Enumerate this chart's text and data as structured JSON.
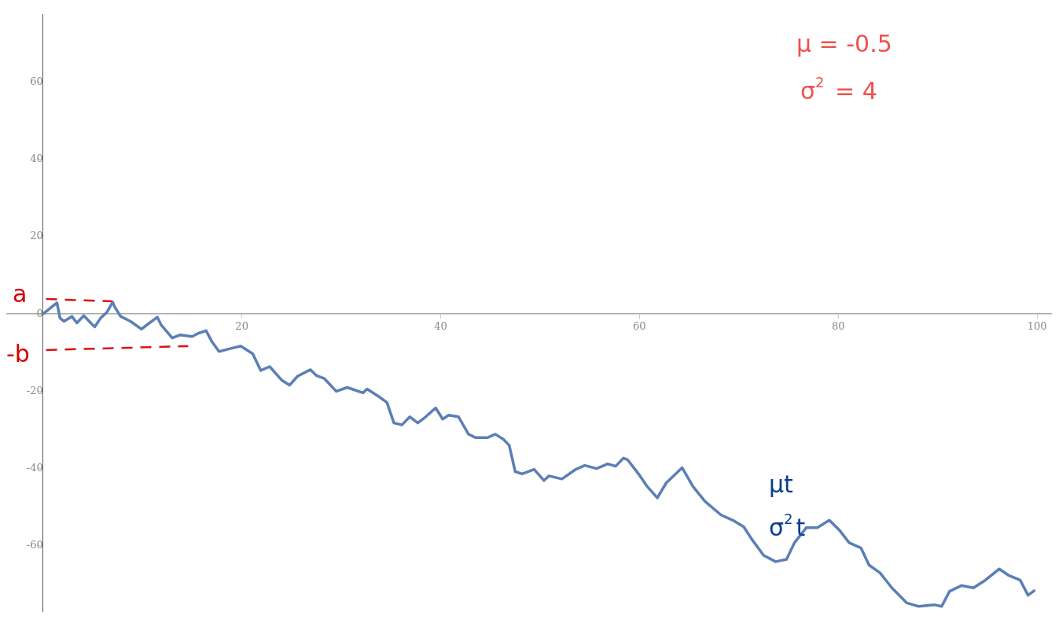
{
  "chart_data": {
    "type": "line",
    "xlim": [
      -3.7,
      101.5
    ],
    "ylim": [
      -77,
      77.5
    ],
    "xticks": [
      20,
      40,
      60,
      80,
      100
    ],
    "yticks": [
      -60,
      -40,
      -20,
      0,
      20,
      40,
      60
    ],
    "grid": false,
    "legend": false,
    "marker": "none",
    "annotations": [
      "μ = -0.5",
      "σ$^{2}$ = 4",
      "μt",
      "σ$^{2}$t",
      "a",
      "-b"
    ],
    "series": [
      {
        "color": "#5b7fb5",
        "x": [
          0,
          0.9,
          1.4,
          1.7,
          2.1,
          2.9,
          3.4,
          4.1,
          4.8,
          5.2,
          5.8,
          6.4,
          7.0,
          7.2,
          7.8,
          8.8,
          9.9,
          10.6,
          11.5,
          11.9,
          13.0,
          13.8,
          15.0,
          15.6,
          16.4,
          17.0,
          17.7,
          18.9,
          19.9,
          21.1,
          21.9,
          22.8,
          24.0,
          24.8,
          25.6,
          26.9,
          27.5,
          28.3,
          29.5,
          30.6,
          32.2,
          32.6,
          33.8,
          34.6,
          35.3,
          36.1,
          36.9,
          37.7,
          38.5,
          39.5,
          40.2,
          40.8,
          41.8,
          42.8,
          43.5,
          44.7,
          45.5,
          46.3,
          46.9,
          47.5,
          48.2,
          49.4,
          50.4,
          50.9,
          52.2,
          53.6,
          54.5,
          55.7,
          56.8,
          57.6,
          58.4,
          58.8,
          60.0,
          60.8,
          61.8,
          62.7,
          64.3,
          65.4,
          66.6,
          68.2,
          69.4,
          70.5,
          71.3,
          72.5,
          73.7,
          74.8,
          75.6,
          76.8,
          77.9,
          79.1,
          80.1,
          81.1,
          82.3,
          83.1,
          84.2,
          85.4,
          86.9,
          88.1,
          89.7,
          90.4,
          91.2,
          92.4,
          93.6,
          94.8,
          96.2,
          97.1,
          98.3,
          99.1,
          99.8
        ],
        "values": [
          0,
          1.9,
          2.9,
          -1,
          -1.9,
          -0.6,
          -2.3,
          -0.4,
          -2.3,
          -3.3,
          -1,
          0.4,
          3.1,
          1.9,
          -0.6,
          -1.9,
          -3.9,
          -2.5,
          -0.8,
          -2.9,
          -6.2,
          -5.4,
          -5.8,
          -5,
          -4.3,
          -7.2,
          -9.7,
          -8.9,
          -8.3,
          -10.3,
          -14.6,
          -13.6,
          -17.1,
          -18.4,
          -16.1,
          -14.4,
          -15.9,
          -16.7,
          -20,
          -19,
          -20.4,
          -19.4,
          -21.4,
          -22.9,
          -28.2,
          -28.7,
          -26.6,
          -28.2,
          -26.6,
          -24.3,
          -27.2,
          -26.2,
          -26.6,
          -31.1,
          -32,
          -32,
          -31.1,
          -32.4,
          -34,
          -40.8,
          -41.4,
          -40.2,
          -43.1,
          -41.9,
          -42.7,
          -40.2,
          -39.2,
          -40,
          -38.8,
          -39.4,
          -37.3,
          -37.7,
          -41.7,
          -44.7,
          -47.6,
          -43.7,
          -39.8,
          -44.7,
          -48.5,
          -52,
          -53.4,
          -55.1,
          -58.3,
          -62.5,
          -64.1,
          -63.5,
          -59.2,
          -55.3,
          -55.3,
          -53.4,
          -55.9,
          -59.2,
          -60.6,
          -65,
          -67,
          -70.9,
          -74.8,
          -75.7,
          -75.3,
          -75.7,
          -71.8,
          -70.3,
          -70.9,
          -68.9,
          -66,
          -67.6,
          -68.9,
          -72.8,
          -71.5
        ]
      },
      {
        "color": "#dd1111",
        "line_style": "dashed",
        "x": [
          0.3,
          7.0
        ],
        "values": [
          3.9,
          3.3
        ]
      },
      {
        "color": "#dd1111",
        "line_style": "dashed",
        "x": [
          0.3,
          14.6
        ],
        "values": [
          -9.3,
          -8.3
        ]
      }
    ]
  }
}
